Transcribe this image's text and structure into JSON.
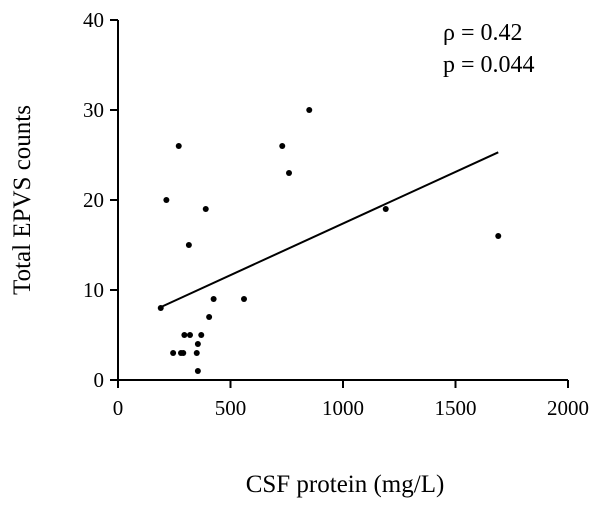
{
  "chart_data": {
    "type": "scatter",
    "xlabel": "CSF protein (mg/L)",
    "ylabel": "Total EPVS counts",
    "xlim": [
      0,
      2000
    ],
    "ylim": [
      0,
      40
    ],
    "x_ticks": [
      0,
      500,
      1000,
      1500,
      2000
    ],
    "y_ticks": [
      0,
      10,
      20,
      30,
      40
    ],
    "grid": false,
    "annotations": [
      "ρ = 0.42",
      "p = 0.044"
    ],
    "points": [
      {
        "x": 190,
        "y": 8
      },
      {
        "x": 215,
        "y": 20
      },
      {
        "x": 245,
        "y": 3
      },
      {
        "x": 270,
        "y": 26
      },
      {
        "x": 280,
        "y": 3
      },
      {
        "x": 290,
        "y": 3
      },
      {
        "x": 295,
        "y": 5
      },
      {
        "x": 315,
        "y": 15
      },
      {
        "x": 320,
        "y": 5
      },
      {
        "x": 350,
        "y": 3
      },
      {
        "x": 355,
        "y": 4
      },
      {
        "x": 355,
        "y": 1
      },
      {
        "x": 370,
        "y": 5
      },
      {
        "x": 390,
        "y": 19
      },
      {
        "x": 405,
        "y": 7
      },
      {
        "x": 425,
        "y": 9
      },
      {
        "x": 560,
        "y": 9
      },
      {
        "x": 730,
        "y": 26
      },
      {
        "x": 760,
        "y": 23
      },
      {
        "x": 850,
        "y": 30
      },
      {
        "x": 1190,
        "y": 19
      },
      {
        "x": 1690,
        "y": 16
      }
    ],
    "fit_line": {
      "x": [
        190,
        1690
      ],
      "y": [
        8.1,
        25.3
      ]
    }
  }
}
